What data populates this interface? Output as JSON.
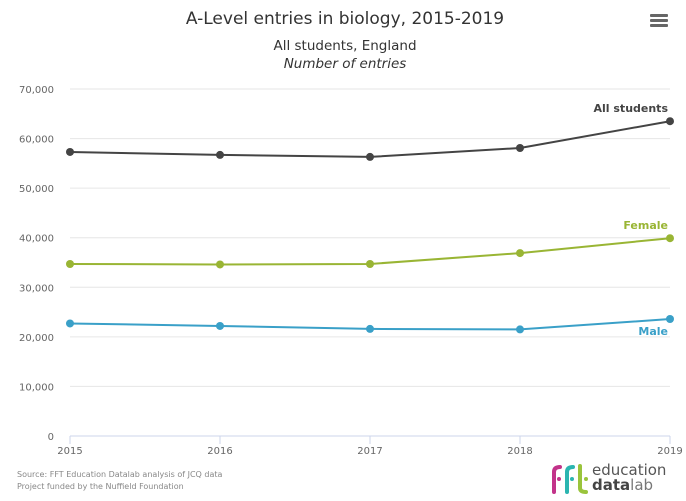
{
  "chart_data": {
    "type": "line",
    "title": "A-Level entries in biology, 2015-2019",
    "subtitle": "All students, England",
    "subtitle2": "Number of entries",
    "xlabel": "",
    "ylabel": "",
    "x": [
      "2015",
      "2016",
      "2017",
      "2018",
      "2019"
    ],
    "ylim": [
      0,
      70000
    ],
    "yticks": [
      0,
      10000,
      20000,
      30000,
      40000,
      50000,
      60000,
      70000
    ],
    "ytick_labels": [
      "0",
      "10,000",
      "20,000",
      "30,000",
      "40,000",
      "50,000",
      "60,000",
      "70,000"
    ],
    "grid": true,
    "legend": "inline-end-labels",
    "series": [
      {
        "name": "All students",
        "color": "#444444",
        "values": [
          57300,
          56700,
          56300,
          58100,
          63500
        ]
      },
      {
        "name": "Female",
        "color": "#99b534",
        "values": [
          34700,
          34600,
          34700,
          36900,
          39900
        ]
      },
      {
        "name": "Male",
        "color": "#3aa0c8",
        "values": [
          22700,
          22200,
          21600,
          21500,
          23600
        ]
      }
    ]
  },
  "menu": {
    "icon": "hamburger-menu-icon"
  },
  "credits": {
    "source": "Source: FFT Education Datalab analysis of JCQ data",
    "funding": "Project funded by the Nuffield Foundation"
  },
  "logo": {
    "mark": "fft",
    "word1": "education",
    "word2_bold": "data",
    "word2_light": "lab",
    "colors": [
      "#c2338a",
      "#2bb5b0",
      "#9ac43c"
    ]
  }
}
